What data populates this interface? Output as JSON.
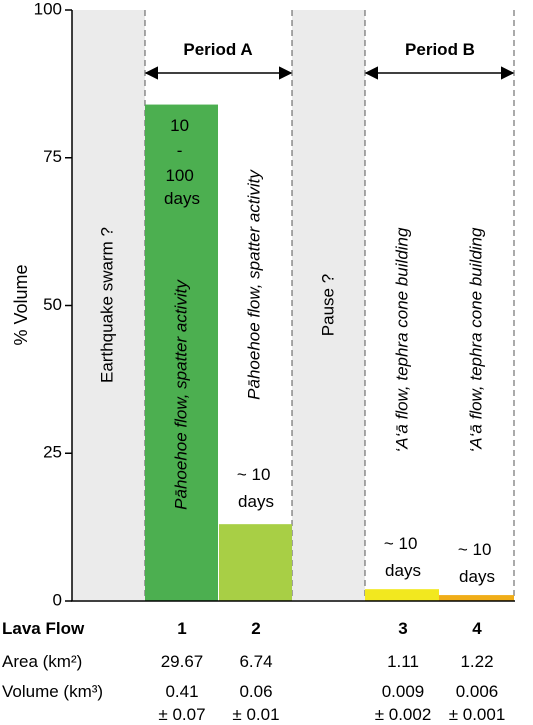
{
  "chart_data": {
    "type": "bar",
    "ylabel": "% Volume",
    "ylim": [
      0,
      100
    ],
    "yticks": [
      0,
      25,
      50,
      75,
      100
    ],
    "grid": false,
    "bars": [
      {
        "flow": "1",
        "value": 84,
        "color": "#4caf50",
        "duration": [
          "10",
          "-",
          "100",
          "days"
        ],
        "activity": "Pāhoehoe flow, spatter activity"
      },
      {
        "flow": "2",
        "value": 13,
        "color": "#a8cf45",
        "duration": [
          "~ 10",
          "days"
        ],
        "activity": "Pāhoehoe flow, spatter activity"
      },
      {
        "flow": "3",
        "value": 2,
        "color": "#f2e81f",
        "duration": [
          "~ 10",
          "days"
        ],
        "activity": "‘A‘ā flow, tephra cone building"
      },
      {
        "flow": "4",
        "value": 1,
        "color": "#f0ad18",
        "duration": [
          "~ 10",
          "days"
        ],
        "activity": "‘A‘ā flow, tephra cone building"
      }
    ],
    "phases": [
      {
        "label": "Earthquake swarm ?",
        "color": "#ebebeb"
      },
      {
        "label": "Pause ?",
        "color": "#ebebeb"
      }
    ],
    "periods": [
      "Period A",
      "Period B"
    ]
  },
  "table": {
    "row_headers": {
      "flow": "Lava Flow",
      "area": "Area (km²)",
      "volume": "Volume (km³)"
    },
    "area": [
      "29.67",
      "6.74",
      "1.11",
      "1.22"
    ],
    "volume_main": [
      "0.41",
      "0.06",
      "0.009",
      "0.006"
    ],
    "volume_err": [
      "± 0.07",
      "± 0.01",
      "± 0.002",
      "± 0.001"
    ]
  }
}
